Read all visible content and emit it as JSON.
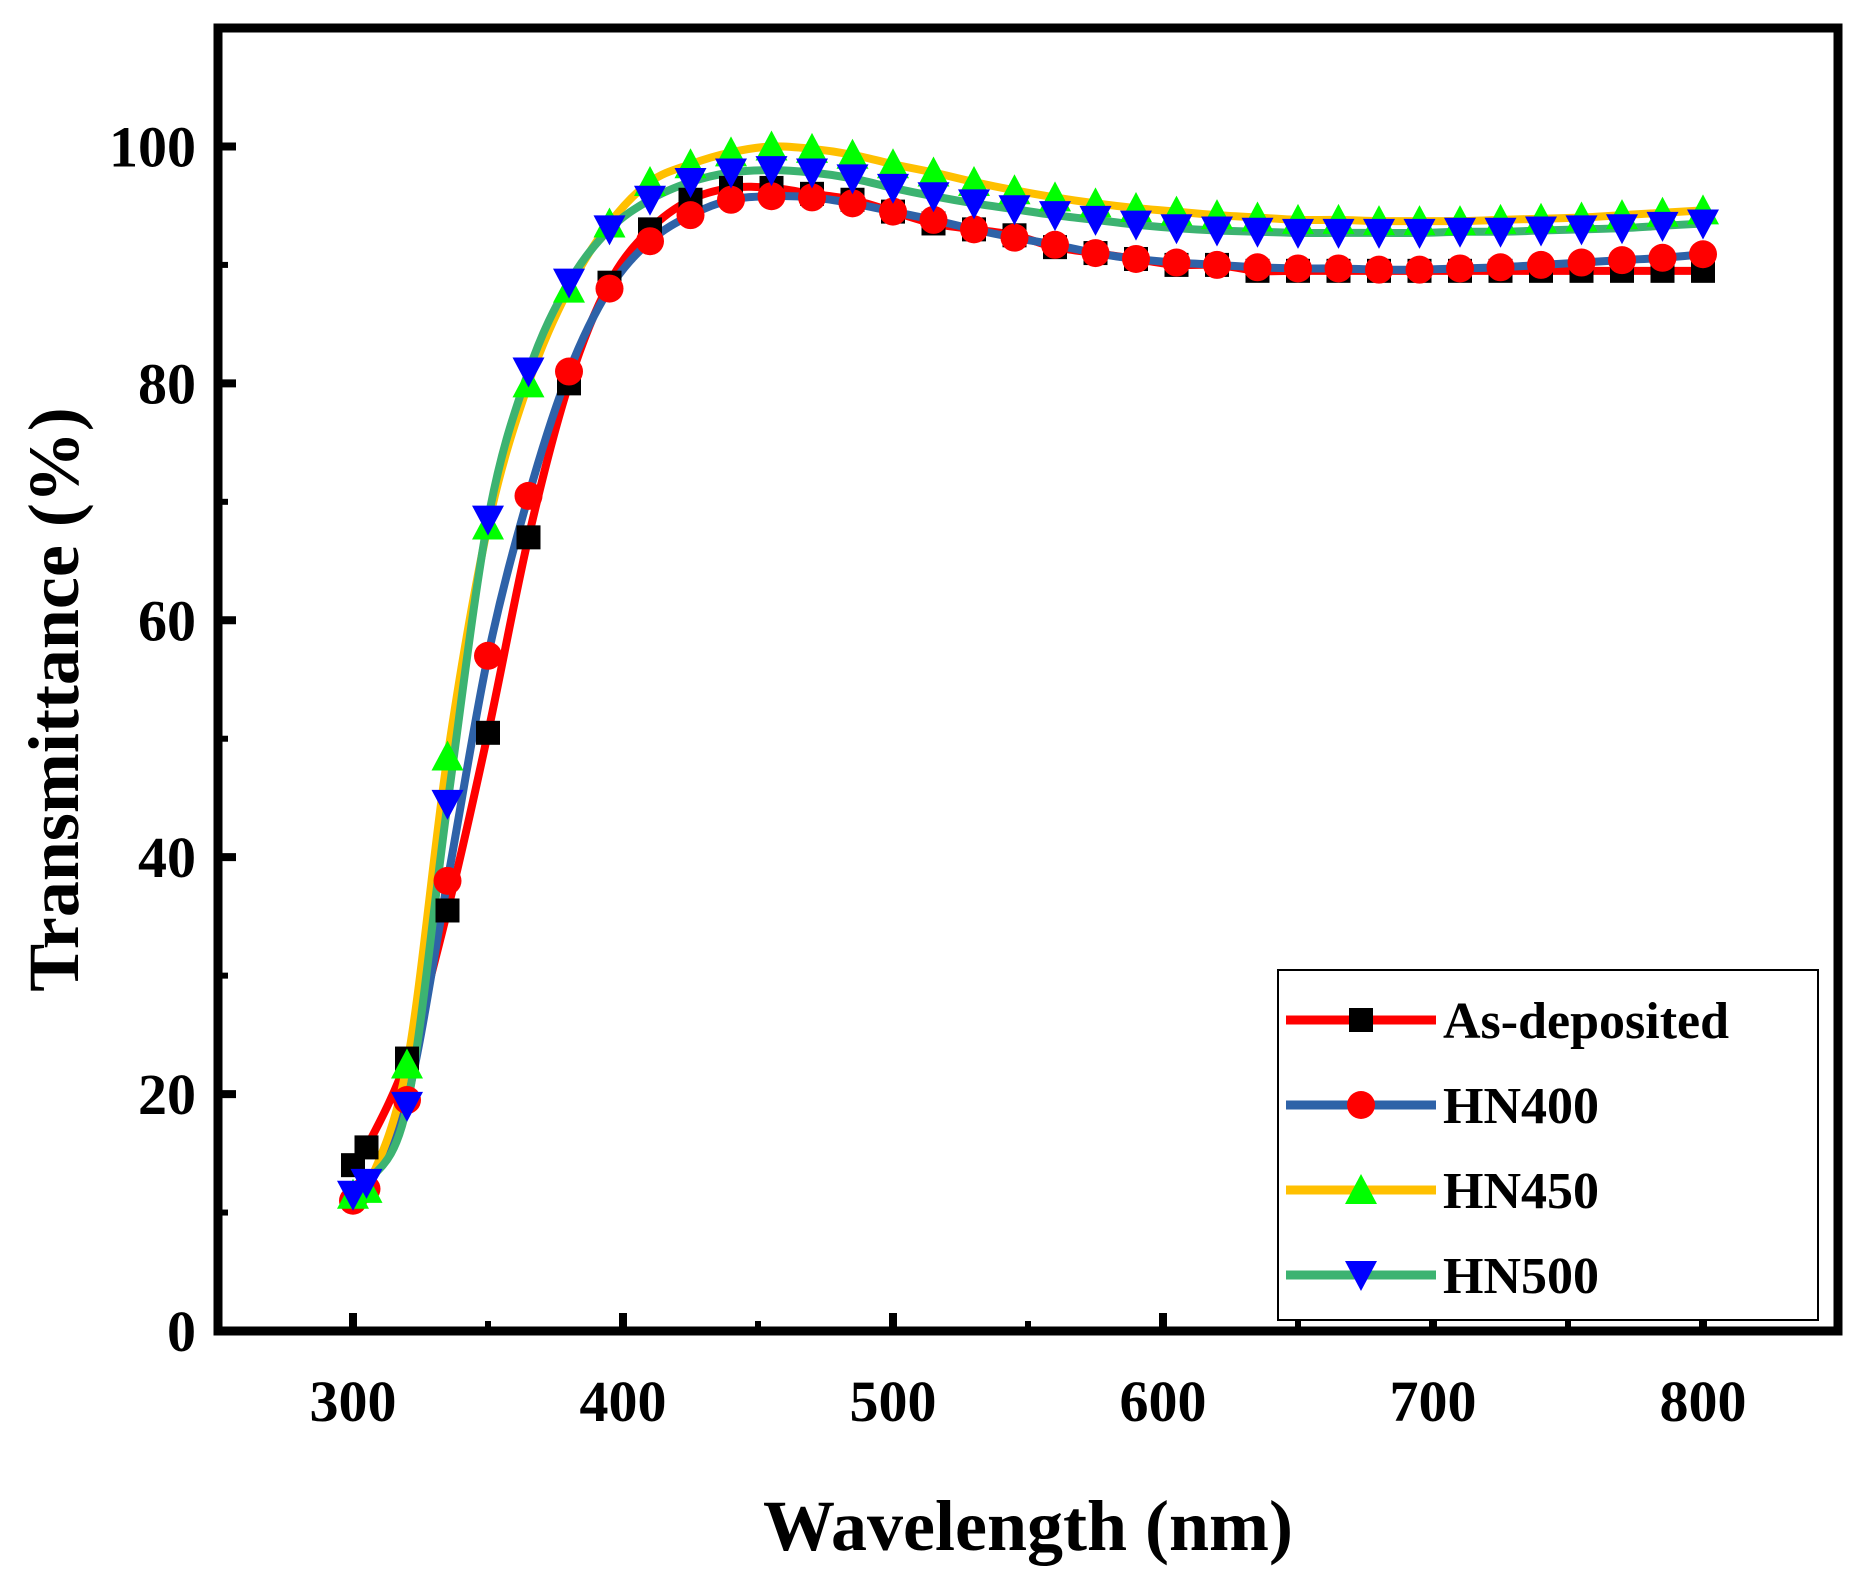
{
  "chart_data": {
    "type": "line",
    "title": "",
    "xlabel": "Wavelength (nm)",
    "ylabel": "Transmittance (%)",
    "xlim": [
      250,
      850
    ],
    "ylim": [
      0,
      110
    ],
    "xticks": [
      300,
      400,
      500,
      600,
      700,
      800
    ],
    "yticks": [
      0,
      20,
      40,
      60,
      80,
      100
    ],
    "xtick_labels": [
      "300",
      "400",
      "500",
      "600",
      "700",
      "800"
    ],
    "ytick_labels": [
      "0",
      "20",
      "40",
      "60",
      "80",
      "100"
    ],
    "grid": false,
    "legend_position": "bottom-right",
    "series": [
      {
        "name": "As-deposited",
        "color": "#ff0000",
        "marker": "square",
        "marker_color": "#000000",
        "x": [
          300,
          305,
          320,
          335,
          350,
          365,
          380,
          395,
          410,
          425,
          440,
          455,
          470,
          485,
          500,
          515,
          530,
          545,
          560,
          575,
          590,
          605,
          620,
          635,
          650,
          665,
          680,
          695,
          710,
          725,
          740,
          755,
          770,
          785,
          800
        ],
        "y": [
          14,
          15.5,
          23,
          35.5,
          50.5,
          67,
          80,
          88.5,
          93,
          95.5,
          96.5,
          96.5,
          96,
          95.5,
          94.5,
          93.5,
          93,
          92.5,
          91.5,
          91,
          90.5,
          90,
          90,
          89.5,
          89.5,
          89.5,
          89.5,
          89.5,
          89.5,
          89.5,
          89.5,
          89.5,
          89.5,
          89.5,
          89.5
        ]
      },
      {
        "name": "HN400",
        "color": "#2e62a8",
        "marker": "circle",
        "marker_color": "#ff0000",
        "x": [
          300,
          305,
          320,
          335,
          350,
          365,
          380,
          395,
          410,
          425,
          440,
          455,
          470,
          485,
          500,
          515,
          530,
          545,
          560,
          575,
          590,
          605,
          620,
          635,
          650,
          665,
          680,
          695,
          710,
          725,
          740,
          755,
          770,
          785,
          800
        ],
        "y": [
          11,
          12,
          19.5,
          38,
          57,
          70.5,
          81,
          88,
          92,
          94.2,
          95.5,
          95.8,
          95.7,
          95.2,
          94.5,
          93.8,
          93,
          92.3,
          91.7,
          91,
          90.5,
          90.2,
          90,
          89.8,
          89.7,
          89.7,
          89.6,
          89.6,
          89.7,
          89.8,
          90,
          90.2,
          90.4,
          90.6,
          90.9
        ]
      },
      {
        "name": "HN450",
        "color": "#ffc000",
        "marker": "triangle-up",
        "marker_color": "#00ff00",
        "x": [
          300,
          305,
          320,
          335,
          350,
          365,
          380,
          395,
          410,
          425,
          440,
          455,
          470,
          485,
          500,
          515,
          530,
          545,
          560,
          575,
          590,
          605,
          620,
          635,
          650,
          665,
          680,
          695,
          710,
          725,
          740,
          755,
          770,
          785,
          800
        ],
        "y": [
          11.5,
          12,
          22.5,
          48.5,
          68,
          80,
          88,
          93.5,
          97,
          98.5,
          99.5,
          100,
          99.8,
          99.3,
          98.5,
          97.8,
          97,
          96.3,
          95.7,
          95.2,
          94.8,
          94.5,
          94.2,
          94,
          93.8,
          93.8,
          93.7,
          93.7,
          93.7,
          93.8,
          93.9,
          94,
          94.2,
          94.4,
          94.6
        ]
      },
      {
        "name": "HN500",
        "color": "#3cb371",
        "marker": "triangle-down",
        "marker_color": "#0000ff",
        "x": [
          300,
          305,
          320,
          335,
          350,
          365,
          380,
          395,
          410,
          425,
          440,
          455,
          470,
          485,
          500,
          515,
          530,
          545,
          560,
          575,
          590,
          605,
          620,
          635,
          650,
          665,
          680,
          695,
          710,
          725,
          740,
          755,
          770,
          785,
          800
        ],
        "y": [
          11.5,
          12.5,
          19,
          44.5,
          68.5,
          81,
          88.5,
          93,
          95.5,
          97,
          97.8,
          98,
          97.8,
          97.3,
          96.5,
          95.8,
          95.2,
          94.7,
          94.2,
          93.8,
          93.4,
          93.1,
          92.9,
          92.8,
          92.7,
          92.7,
          92.7,
          92.7,
          92.8,
          92.8,
          92.9,
          93,
          93.1,
          93.3,
          93.5
        ]
      }
    ]
  }
}
